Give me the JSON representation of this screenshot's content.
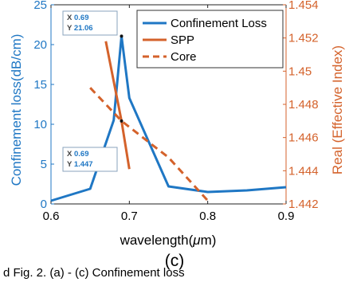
{
  "chart_data": {
    "type": "line",
    "title": "",
    "xlabel_prefix": "wavelength(",
    "xlabel_mu": "μ",
    "xlabel_suffix": "m)",
    "ylabel": "Confinement loss(dB/cm)",
    "ylabel_right": "Real (Effective Index)",
    "xlim": [
      0.6,
      0.9
    ],
    "ylim": [
      0,
      25
    ],
    "ylim_right": [
      1.442,
      1.454
    ],
    "x_ticks": [
      "0.6",
      "0.7",
      "0.8",
      "0.9"
    ],
    "y_ticks": [
      "0",
      "5",
      "10",
      "15",
      "20",
      "25"
    ],
    "y_ticks_right": [
      "1.442",
      "1.444",
      "1.446",
      "1.448",
      "1.45",
      "1.452",
      "1.454"
    ],
    "grid": false,
    "legend_position": "top-right",
    "series": [
      {
        "name": "Confinement Loss",
        "axis": "left",
        "color": "#1f77c4",
        "style": "solid",
        "x": [
          0.6,
          0.65,
          0.68,
          0.69,
          0.7,
          0.75,
          0.8,
          0.85,
          0.9
        ],
        "y": [
          0.4,
          1.9,
          10.5,
          21.06,
          13.3,
          2.2,
          1.5,
          1.7,
          2.1
        ]
      },
      {
        "name": "SPP",
        "axis": "right",
        "color": "#d4622b",
        "style": "solid",
        "x": [
          0.67,
          0.69,
          0.7
        ],
        "y": [
          1.4518,
          1.447,
          1.4441
        ]
      },
      {
        "name": "Core",
        "axis": "right",
        "color": "#d4622b",
        "style": "dashed",
        "x": [
          0.65,
          0.69,
          0.75,
          0.8
        ],
        "y": [
          1.449,
          1.447,
          1.4448,
          1.4422
        ]
      }
    ],
    "datatips": [
      {
        "axis": "left",
        "x": 0.69,
        "y": 21.06,
        "x_label": "X",
        "y_label": "Y",
        "x_text": "0.69",
        "y_text": "21.06"
      },
      {
        "axis": "right",
        "x": 0.69,
        "y": 1.447,
        "x_label": "X",
        "y_label": "Y",
        "x_text": "0.69",
        "y_text": "1.447"
      }
    ]
  },
  "caption": "(c)",
  "footer_text": "d Fig. 2. (a) - (c) Confinement loss"
}
